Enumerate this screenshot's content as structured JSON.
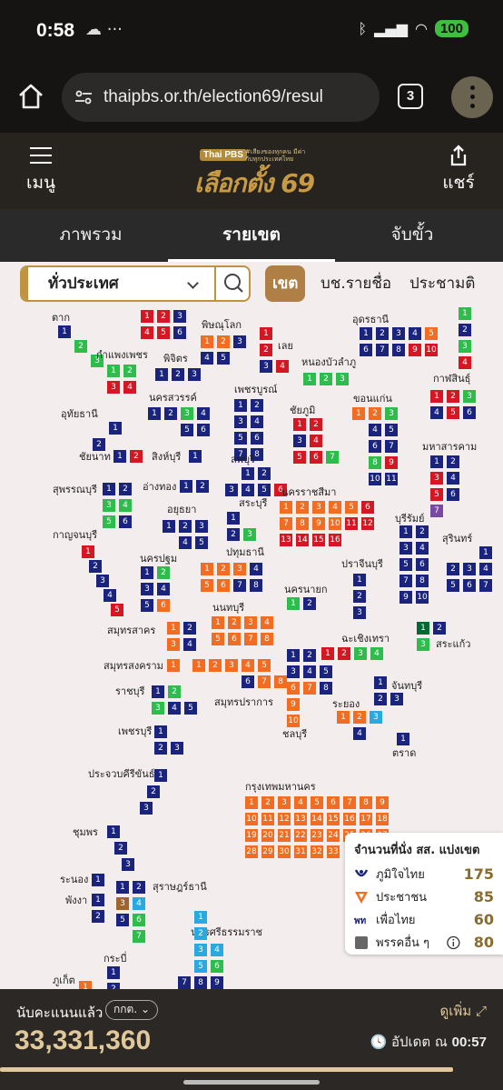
{
  "status": {
    "time": "0:58",
    "left_icons": "☁ ···",
    "battery": "100"
  },
  "browser": {
    "url": "thaipbs.or.th/election69/resul",
    "tab_count": "3"
  },
  "header": {
    "menu_label": "เมนู",
    "share_label": "แชร์",
    "logo_badge": "Thai PBS",
    "logo_tagline": "#เสียงของทุกคน มีค่ากับทุกประเทศไทย",
    "logo_title": "เลือกตั้ง 69"
  },
  "nav_tabs": [
    {
      "label": "ภาพรวม"
    },
    {
      "label": "รายเขต"
    },
    {
      "label": "จับขั้ว"
    }
  ],
  "selector": {
    "value": "ทั่วประเทศ"
  },
  "map_tabs": [
    {
      "label": "เขต"
    },
    {
      "label": "บช.รายชื่อ"
    },
    {
      "label": "ประชามติ"
    }
  ],
  "colors": {
    "1": "#1a237e",
    "2": "#f26d21",
    "3": "#2ebd4d",
    "4": "#d51623",
    "5": "#006a33",
    "6": "#a0652a",
    "7": "#29a9e0",
    "8": "#7a49a5"
  },
  "provinces": [
    {
      "name": "ตาก",
      "label": "ตาก",
      "label_at": [
        57,
        55
      ],
      "layout": "diag",
      "origin": [
        64,
        70
      ],
      "step": [
        18,
        16
      ],
      "cells": [
        1,
        3,
        3
      ]
    },
    {
      "name": "กำแพงเพชร",
      "label": "กำแพงเพชร",
      "label_at": [
        106,
        96
      ],
      "layout": "grid",
      "origin": [
        118,
        113
      ],
      "cols": 2,
      "cells": [
        3,
        3,
        4,
        4
      ]
    },
    {
      "name": "พิษณุโลก",
      "label": "พิษณุโลก",
      "label_at": [
        222,
        63
      ],
      "layout": "grid",
      "origin": [
        221,
        81
      ],
      "cols": 3,
      "cells": [
        2,
        2,
        1,
        1,
        1
      ]
    },
    {
      "name": "พิจิตร",
      "label": "พิจิตร",
      "label_at": [
        180,
        100
      ],
      "layout": "grid",
      "origin": [
        171,
        117
      ],
      "cols": 3,
      "cells": [
        1,
        1,
        1
      ]
    },
    {
      "name": "นครสวรรค์",
      "label": "นครสวรรค์",
      "label_at": [
        164,
        143
      ],
      "layout": "grid",
      "origin": [
        163,
        160
      ],
      "cols": 4,
      "cells": [
        1,
        1,
        3,
        1,
        null,
        null,
        1,
        1
      ]
    },
    {
      "name": "เลย",
      "label": "เลย",
      "label_at": [
        306,
        86
      ],
      "layout": "grid",
      "origin": [
        286,
        72
      ],
      "cols": 2,
      "cells": [
        4,
        null,
        4,
        null,
        1,
        4
      ]
    },
    {
      "name": "หนองบัวลำภู",
      "label": "หนองบัวลำภู",
      "label_at": [
        332,
        104
      ],
      "layout": "grid",
      "origin": [
        334,
        122
      ],
      "cols": 3,
      "cells": [
        3,
        3,
        3
      ]
    },
    {
      "name": "อุดรธานี",
      "label": "อุดรธานี",
      "label_at": [
        388,
        57
      ],
      "layout": "grid",
      "origin": [
        396,
        72
      ],
      "cols": 5,
      "cells": [
        1,
        1,
        1,
        1,
        2,
        1,
        1,
        1,
        4,
        4
      ]
    },
    {
      "name": "กาฬสินธุ์",
      "label": "กาฬสินธุ์",
      "label_at": [
        477,
        122
      ],
      "layout": "grid",
      "origin": [
        474,
        141
      ],
      "cols": 3,
      "cells": [
        4,
        4,
        3,
        1,
        4,
        1
      ]
    },
    {
      "name": "เพชรบูรณ์",
      "label": "เพชรบูรณ์",
      "label_at": [
        258,
        134
      ],
      "layout": "grid",
      "origin": [
        258,
        151
      ],
      "cols": 2,
      "cells": [
        1,
        1,
        1,
        1,
        1,
        1,
        1,
        1
      ]
    },
    {
      "name": "ชัยภูมิ",
      "label": "ชัยภูมิ",
      "label_at": [
        319,
        157
      ],
      "layout": "grid",
      "origin": [
        323,
        172
      ],
      "cols": 3,
      "cells": [
        4,
        4,
        null,
        1,
        4,
        null,
        4,
        4,
        3
      ]
    },
    {
      "name": "ขอนแก่น",
      "label": "ขอนแก่น",
      "label_at": [
        389,
        144
      ],
      "layout": "grid",
      "origin": [
        388,
        160
      ],
      "cols": 3,
      "cells": [
        2,
        2,
        3,
        null,
        1,
        1,
        null,
        1,
        1,
        null,
        3,
        4,
        null,
        1,
        1
      ]
    },
    {
      "name": "มหาสารคาม",
      "label": "มหาสารคาม",
      "label_at": [
        465,
        197
      ],
      "layout": "grid",
      "origin": [
        474,
        213
      ],
      "cols": 2,
      "cells": [
        1,
        1,
        4,
        1,
        4,
        1,
        8
      ]
    },
    {
      "name": "อุทัยธานี",
      "label": "อุทัยธานี",
      "label_at": [
        67,
        161
      ],
      "layout": "grid",
      "origin": [
        102,
        176
      ],
      "cols": 2,
      "cells": [
        null,
        1,
        1
      ]
    },
    {
      "name": "ชัยนาท",
      "label": "ชัยนาท",
      "label_at": [
        87,
        208
      ],
      "layout": "grid",
      "origin": [
        125,
        207
      ],
      "cols": 2,
      "cells": [
        1,
        4
      ]
    },
    {
      "name": "สิงห์บุรี",
      "label": "สิงห์บุรี",
      "label_at": [
        167,
        208
      ],
      "layout": "grid",
      "origin": [
        208,
        207
      ],
      "cols": 1,
      "cells": [
        1
      ]
    },
    {
      "name": "ลพบุรี",
      "label": "ลพบุรี",
      "label_at": [
        254,
        211
      ],
      "layout": "grid",
      "origin": [
        248,
        226
      ],
      "cols": 4,
      "cells": [
        null,
        1,
        1,
        null,
        1,
        1,
        1,
        4
      ]
    },
    {
      "name": "อ่างทอง",
      "label": "อ่างทอง",
      "label_at": [
        157,
        241
      ],
      "layout": "grid",
      "origin": [
        198,
        240
      ],
      "cols": 2,
      "cells": [
        1,
        1
      ]
    },
    {
      "name": "สุพรรณบุรี",
      "label": "สุพรรณบุรี",
      "label_at": [
        58,
        244
      ],
      "layout": "grid",
      "origin": [
        113,
        243
      ],
      "cols": 2,
      "cells": [
        1,
        1,
        3,
        3,
        3,
        1
      ]
    },
    {
      "name": "อยุธยา",
      "label": "อยุธยา",
      "label_at": [
        184,
        266
      ],
      "layout": "grid",
      "origin": [
        179,
        284
      ],
      "cols": 3,
      "cells": [
        1,
        1,
        1,
        null,
        1,
        1
      ]
    },
    {
      "name": "สระบุรี",
      "label": "สระบุรี",
      "label_at": [
        263,
        259
      ],
      "layout": "grid",
      "origin": [
        250,
        275
      ],
      "cols": 2,
      "cells": [
        1,
        null,
        1,
        3
      ]
    },
    {
      "name": "นครราชสีมา",
      "label": "นครราชสีมา",
      "label_at": [
        310,
        247
      ],
      "layout": "grid",
      "origin": [
        308,
        263
      ],
      "cols": 6,
      "cells": [
        2,
        2,
        2,
        2,
        2,
        4,
        2,
        2,
        2,
        2,
        4,
        4,
        4,
        4,
        4,
        4
      ]
    },
    {
      "name": "บุรีรัมย์",
      "label": "บุรีรัมย์",
      "label_at": [
        435,
        276
      ],
      "layout": "grid",
      "origin": [
        440,
        290
      ],
      "cols": 2,
      "cells": [
        1,
        1,
        1,
        1,
        1,
        1,
        1,
        1,
        1,
        1
      ]
    },
    {
      "name": "สุรินทร์",
      "label": "สุรินทร์",
      "label_at": [
        487,
        298
      ],
      "layout": "grid",
      "origin": [
        492,
        313
      ],
      "cols": 3,
      "cells": [
        null,
        null,
        1,
        1,
        1,
        1,
        1,
        1,
        1
      ]
    },
    {
      "name": "กาญจนบุรี",
      "label": "กาญจนบุรี",
      "label_at": [
        58,
        294
      ],
      "layout": "diag",
      "origin": [
        90,
        312
      ],
      "step": [
        8,
        16
      ],
      "cells": [
        4,
        1,
        1,
        1,
        4
      ]
    },
    {
      "name": "นครปฐม",
      "label": "นครปฐม",
      "label_at": [
        154,
        320
      ],
      "layout": "grid",
      "origin": [
        155,
        335
      ],
      "cols": 2,
      "cells": [
        1,
        3,
        1,
        1,
        1,
        2
      ]
    },
    {
      "name": "ปทุมธานี",
      "label": "ปทุมธานี",
      "label_at": [
        249,
        313
      ],
      "layout": "grid",
      "origin": [
        221,
        331
      ],
      "cols": 4,
      "cells": [
        2,
        2,
        2,
        1,
        2,
        2,
        1,
        1
      ]
    },
    {
      "name": "ปราจีนบุรี",
      "label": "ปราจีนบุรี",
      "label_at": [
        376,
        326
      ],
      "layout": "grid",
      "origin": [
        389,
        343
      ],
      "cols": 1,
      "cells": [
        1,
        1,
        1
      ]
    },
    {
      "name": "นครนายก",
      "label": "นครนายก",
      "label_at": [
        313,
        354
      ],
      "layout": "grid",
      "origin": [
        316,
        369
      ],
      "cols": 2,
      "cells": [
        3,
        1
      ]
    },
    {
      "name": "นนทบุรี",
      "label": "นนทบุรี",
      "label_at": [
        234,
        374
      ],
      "layout": "grid",
      "origin": [
        233,
        390
      ],
      "cols": 4,
      "cells": [
        2,
        2,
        2,
        2,
        2,
        2,
        2,
        2
      ]
    },
    {
      "name": "สมุทรสาคร",
      "label": "สมุทรสาคร",
      "label_at": [
        118,
        399
      ],
      "layout": "grid",
      "origin": [
        184,
        396
      ],
      "cols": 2,
      "cells": [
        2,
        1,
        2,
        1
      ]
    },
    {
      "name": "สระแก้ว",
      "label": "สระแก้ว",
      "label_at": [
        480,
        414
      ],
      "layout": "grid",
      "origin": [
        459,
        396
      ],
      "cols": 2,
      "cells": [
        5,
        1,
        3
      ]
    },
    {
      "name": "ฉะเชิงเทรา",
      "label": "ฉะเชิงเทรา",
      "label_at": [
        376,
        408
      ],
      "layout": "grid",
      "origin": [
        354,
        424
      ],
      "cols": 5,
      "cells": [
        4,
        4,
        3,
        3
      ]
    },
    {
      "name": "สมุทรสงคราม",
      "label": "สมุทรสงคราม",
      "label_at": [
        114,
        438
      ],
      "layout": "grid",
      "origin": [
        184,
        437
      ],
      "cols": 1,
      "cells": [
        2
      ]
    },
    {
      "name": "สมุทรปราการ",
      "label": "สมุทรปราการ",
      "label_at": [
        236,
        478
      ],
      "layout": "grid",
      "origin": [
        212,
        437
      ],
      "cols": 6,
      "cells": [
        2,
        2,
        2,
        2,
        2,
        null,
        null,
        null,
        null,
        1,
        2,
        2
      ]
    },
    {
      "name": "ชลบุรี",
      "label": "ชลบุรี",
      "label_at": [
        311,
        513
      ],
      "layout": "grid",
      "origin": [
        316,
        426
      ],
      "cols": 3,
      "cells": [
        1,
        1,
        null,
        1,
        1,
        1,
        2,
        2,
        1,
        2,
        null,
        null,
        2
      ]
    },
    {
      "name": "จันทบุรี",
      "label": "จันทบุรี",
      "label_at": [
        431,
        460
      ],
      "layout": "grid",
      "origin": [
        412,
        456
      ],
      "cols": 2,
      "cells": [
        1,
        null,
        1,
        1
      ]
    },
    {
      "name": "ราชบุรี",
      "label": "ราชบุรี",
      "label_at": [
        127,
        466
      ],
      "layout": "grid",
      "origin": [
        167,
        466
      ],
      "cols": 3,
      "cells": [
        1,
        3,
        null,
        3,
        1,
        1
      ]
    },
    {
      "name": "ระยอง",
      "label": "ระยอง",
      "label_at": [
        366,
        480
      ],
      "layout": "grid",
      "origin": [
        371,
        494
      ],
      "cols": 3,
      "cells": [
        2,
        2,
        7,
        null,
        1
      ]
    },
    {
      "name": "เพชรบุรี",
      "label": "เพชรบุรี",
      "label_at": [
        130,
        510
      ],
      "layout": "grid",
      "origin": [
        170,
        510
      ],
      "cols": 2,
      "cells": [
        1,
        null,
        1,
        1
      ]
    },
    {
      "name": "ตราด",
      "label": "ตราด",
      "label_at": [
        432,
        534
      ],
      "layout": "grid",
      "origin": [
        437,
        518
      ],
      "cols": 1,
      "cells": [
        1
      ]
    },
    {
      "name": "ประจวบคีรีขันธ์",
      "label": "ประจวบคีรีขันธ์",
      "label_at": [
        97,
        557
      ],
      "layout": "diag",
      "origin": [
        170,
        558
      ],
      "step": [
        -8,
        18
      ],
      "cells": [
        1,
        1,
        1
      ]
    },
    {
      "name": "กรุงเทพมหานคร",
      "label": "กรุงเทพมหานคร",
      "label_at": [
        270,
        571
      ],
      "layout": "grid",
      "origin": [
        270,
        588
      ],
      "cols": 9,
      "cells": [
        2,
        2,
        2,
        2,
        2,
        2,
        2,
        2,
        2,
        2,
        2,
        2,
        2,
        2,
        2,
        2,
        2,
        2,
        2,
        2,
        2,
        2,
        2,
        2,
        2,
        2,
        2,
        2,
        2,
        2,
        2,
        2,
        2
      ]
    },
    {
      "name": "ชุมพร",
      "label": "ชุมพร",
      "label_at": [
        80,
        621
      ],
      "layout": "diag",
      "origin": [
        118,
        620
      ],
      "step": [
        8,
        18
      ],
      "cells": [
        1,
        1,
        1
      ]
    },
    {
      "name": "ระนอง",
      "label": "ระนอง",
      "label_at": [
        66,
        673
      ],
      "layout": "grid",
      "origin": [
        101,
        673
      ],
      "cols": 1,
      "cells": [
        1
      ]
    },
    {
      "name": "สุราษฎร์ธานี",
      "label": "สุราษฎร์ธานี",
      "label_at": [
        168,
        681
      ],
      "layout": "grid",
      "origin": [
        128,
        681
      ],
      "cols": 2,
      "cells": [
        1,
        1,
        6,
        7,
        1,
        3,
        null,
        3
      ]
    },
    {
      "name": "พังงา",
      "label": "พังงา",
      "label_at": [
        72,
        696
      ],
      "layout": "grid",
      "origin": [
        101,
        695
      ],
      "cols": 1,
      "cells": [
        1,
        1
      ]
    },
    {
      "name": "นครศรีธรรมราช",
      "label": "นครศรีธรรมราช",
      "label_at": [
        210,
        731
      ],
      "layout": "grid",
      "origin": [
        196,
        714
      ],
      "cols": 3,
      "cells": [
        null,
        7,
        null,
        null,
        7,
        null,
        null,
        7,
        7,
        null,
        7,
        3,
        1,
        1,
        1
      ]
    },
    {
      "name": "กระบี่",
      "label": "กระบี่",
      "label_at": [
        114,
        760
      ],
      "layout": "grid",
      "origin": [
        118,
        775
      ],
      "cols": 1,
      "cells": [
        1,
        1
      ]
    },
    {
      "name": "ภูเก็ต",
      "label": "ภูเก็ต",
      "label_at": [
        58,
        784
      ],
      "layout": "grid",
      "origin": [
        87,
        791
      ],
      "cols": 1,
      "cells": [
        2
      ]
    },
    {
      "name": "edge-north-1",
      "label": "",
      "layout": "grid",
      "origin": [
        155,
        53
      ],
      "cols": 3,
      "cells": [
        4,
        4,
        1,
        4,
        4,
        1
      ]
    },
    {
      "name": "edge-north-2",
      "label": "",
      "layout": "grid",
      "origin": [
        505,
        50
      ],
      "cols": 1,
      "cells": [
        3,
        1,
        3,
        4
      ]
    }
  ],
  "legend": {
    "title": "จำนวนที่นั่ง สส. แบ่งเขต",
    "rows": [
      {
        "name": "ภูมิใจไทย",
        "value": "175",
        "color": "#1a237e",
        "icon": "bhumjaithai-logo"
      },
      {
        "name": "ประชาชน",
        "value": "85",
        "color": "#f26d21",
        "icon": "people-party-logo"
      },
      {
        "name": "เพื่อไทย",
        "value": "60",
        "color": "#d51623",
        "icon": "pheu-thai-logo"
      },
      {
        "name": "พรรคอื่น ๆ",
        "value": "80",
        "color": "#666666",
        "icon": "info-icon"
      }
    ]
  },
  "footer": {
    "count_label": "นับคะแนนแล้ว",
    "source": "กกต.",
    "total": "33,331,360",
    "more": "ดูเพิ่ม",
    "updated_label": "อัปเดต ณ",
    "updated_time": "00:57",
    "progress": 0.9
  }
}
